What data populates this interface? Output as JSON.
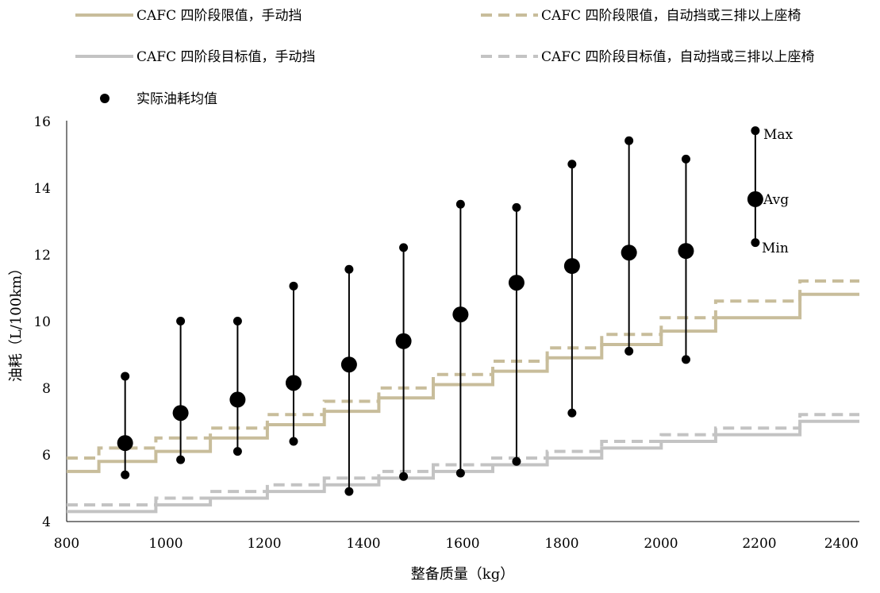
{
  "colors": {
    "limit": "#c8bd9b",
    "target": "#c3c3c3",
    "points": "#000000",
    "axis": "#000000"
  },
  "chart_data": {
    "type": "line",
    "xlabel": "整备质量（kg）",
    "ylabel": "油耗（L/100km）",
    "xlim": [
      800,
      2400
    ],
    "ylim": [
      4,
      16
    ],
    "xticks": [
      "800",
      "1000",
      "1200",
      "1400",
      "1600",
      "1800",
      "2000",
      "2200",
      "2400"
    ],
    "yticks": [
      "4",
      "6",
      "8",
      "10",
      "12",
      "14",
      "16"
    ],
    "legend_placement": "top",
    "series": [
      {
        "name": "CAFC 四阶段限值，手动挡",
        "style": "solid",
        "color": "limit",
        "steps": [
          {
            "x1": 800,
            "x2": 865,
            "y": 5.5
          },
          {
            "x1": 865,
            "x2": 980,
            "y": 5.8
          },
          {
            "x1": 980,
            "x2": 1090,
            "y": 6.1
          },
          {
            "x1": 1090,
            "x2": 1205,
            "y": 6.5
          },
          {
            "x1": 1205,
            "x2": 1320,
            "y": 6.9
          },
          {
            "x1": 1320,
            "x2": 1430,
            "y": 7.3
          },
          {
            "x1": 1430,
            "x2": 1540,
            "y": 7.7
          },
          {
            "x1": 1540,
            "x2": 1660,
            "y": 8.1
          },
          {
            "x1": 1660,
            "x2": 1770,
            "y": 8.5
          },
          {
            "x1": 1770,
            "x2": 1880,
            "y": 8.9
          },
          {
            "x1": 1880,
            "x2": 2000,
            "y": 9.3
          },
          {
            "x1": 2000,
            "x2": 2110,
            "y": 9.7
          },
          {
            "x1": 2110,
            "x2": 2280,
            "y": 10.1
          },
          {
            "x1": 2280,
            "x2": 2400,
            "y": 10.8
          }
        ]
      },
      {
        "name": "CAFC 四阶段限值，自动挡或三排以上座椅",
        "style": "dashed",
        "color": "limit",
        "steps": [
          {
            "x1": 800,
            "x2": 865,
            "y": 5.9
          },
          {
            "x1": 865,
            "x2": 980,
            "y": 6.2
          },
          {
            "x1": 980,
            "x2": 1090,
            "y": 6.5
          },
          {
            "x1": 1090,
            "x2": 1205,
            "y": 6.8
          },
          {
            "x1": 1205,
            "x2": 1320,
            "y": 7.2
          },
          {
            "x1": 1320,
            "x2": 1430,
            "y": 7.6
          },
          {
            "x1": 1430,
            "x2": 1540,
            "y": 8.0
          },
          {
            "x1": 1540,
            "x2": 1660,
            "y": 8.4
          },
          {
            "x1": 1660,
            "x2": 1770,
            "y": 8.8
          },
          {
            "x1": 1770,
            "x2": 1880,
            "y": 9.2
          },
          {
            "x1": 1880,
            "x2": 2000,
            "y": 9.6
          },
          {
            "x1": 2000,
            "x2": 2110,
            "y": 10.1
          },
          {
            "x1": 2110,
            "x2": 2280,
            "y": 10.6
          },
          {
            "x1": 2280,
            "x2": 2400,
            "y": 11.2
          }
        ]
      },
      {
        "name": "CAFC 四阶段目标值，手动挡",
        "style": "solid",
        "color": "target",
        "steps": [
          {
            "x1": 800,
            "x2": 980,
            "y": 4.3
          },
          {
            "x1": 980,
            "x2": 1090,
            "y": 4.5
          },
          {
            "x1": 1090,
            "x2": 1205,
            "y": 4.7
          },
          {
            "x1": 1205,
            "x2": 1320,
            "y": 4.9
          },
          {
            "x1": 1320,
            "x2": 1430,
            "y": 5.1
          },
          {
            "x1": 1430,
            "x2": 1540,
            "y": 5.3
          },
          {
            "x1": 1540,
            "x2": 1660,
            "y": 5.5
          },
          {
            "x1": 1660,
            "x2": 1770,
            "y": 5.7
          },
          {
            "x1": 1770,
            "x2": 1880,
            "y": 5.9
          },
          {
            "x1": 1880,
            "x2": 2000,
            "y": 6.2
          },
          {
            "x1": 2000,
            "x2": 2110,
            "y": 6.4
          },
          {
            "x1": 2110,
            "x2": 2280,
            "y": 6.6
          },
          {
            "x1": 2280,
            "x2": 2400,
            "y": 7.0
          }
        ]
      },
      {
        "name": "CAFC 四阶段目标值，自动挡或三排以上座椅",
        "style": "dashed",
        "color": "target",
        "steps": [
          {
            "x1": 800,
            "x2": 980,
            "y": 4.5
          },
          {
            "x1": 980,
            "x2": 1090,
            "y": 4.7
          },
          {
            "x1": 1090,
            "x2": 1205,
            "y": 4.9
          },
          {
            "x1": 1205,
            "x2": 1320,
            "y": 5.1
          },
          {
            "x1": 1320,
            "x2": 1430,
            "y": 5.3
          },
          {
            "x1": 1430,
            "x2": 1540,
            "y": 5.5
          },
          {
            "x1": 1540,
            "x2": 1660,
            "y": 5.7
          },
          {
            "x1": 1660,
            "x2": 1770,
            "y": 5.9
          },
          {
            "x1": 1770,
            "x2": 1880,
            "y": 6.1
          },
          {
            "x1": 1880,
            "x2": 2000,
            "y": 6.4
          },
          {
            "x1": 2000,
            "x2": 2110,
            "y": 6.6
          },
          {
            "x1": 2110,
            "x2": 2280,
            "y": 6.8
          },
          {
            "x1": 2280,
            "x2": 2400,
            "y": 7.2
          }
        ]
      }
    ],
    "points_series": {
      "name": "实际油耗均值",
      "points": [
        {
          "x": 918,
          "avg": 6.35,
          "min": 5.4,
          "max": 8.35
        },
        {
          "x": 1030,
          "avg": 7.25,
          "min": 5.85,
          "max": 10.0
        },
        {
          "x": 1145,
          "avg": 7.65,
          "min": 6.1,
          "max": 10.0
        },
        {
          "x": 1258,
          "avg": 8.15,
          "min": 6.4,
          "max": 11.05
        },
        {
          "x": 1370,
          "avg": 8.7,
          "min": 4.9,
          "max": 11.55
        },
        {
          "x": 1480,
          "avg": 9.4,
          "min": 5.35,
          "max": 12.2
        },
        {
          "x": 1595,
          "avg": 10.2,
          "min": 5.45,
          "max": 13.5
        },
        {
          "x": 1708,
          "avg": 11.15,
          "min": 5.8,
          "max": 13.4
        },
        {
          "x": 1820,
          "avg": 11.65,
          "min": 7.25,
          "max": 14.7
        },
        {
          "x": 1935,
          "avg": 12.05,
          "min": 9.1,
          "max": 15.4
        },
        {
          "x": 2050,
          "avg": 12.1,
          "min": 8.85,
          "max": 14.85
        }
      ]
    },
    "stat_legend": {
      "x": 2190,
      "max": 15.7,
      "avg": 13.65,
      "min": 12.35,
      "max_label": "Max",
      "avg_label": "Avg",
      "min_label": "Min"
    }
  }
}
